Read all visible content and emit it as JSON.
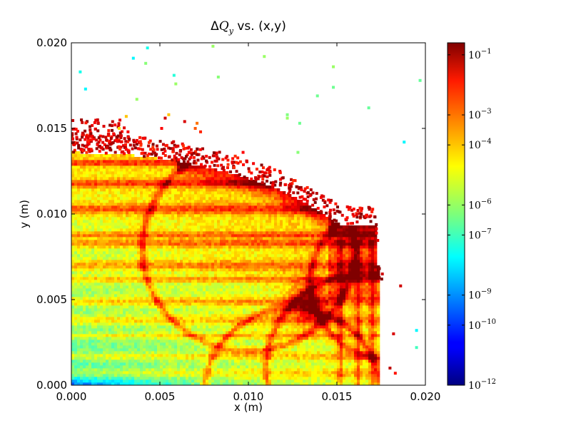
{
  "chart_data": {
    "type": "heatmap",
    "title": "ΔQ_y vs. (x,y)",
    "title_parts": {
      "prefix": "Δ",
      "symbol": "Q",
      "subscript": "y",
      "suffix": " vs. (x,y)"
    },
    "xlabel": "x (m)",
    "ylabel": "y (m)",
    "xlim": [
      0.0,
      0.02
    ],
    "ylim": [
      0.0,
      0.02
    ],
    "xticks": [
      0.0,
      0.005,
      0.01,
      0.015,
      0.02
    ],
    "yticks": [
      0.0,
      0.005,
      0.01,
      0.015,
      0.02
    ],
    "xtick_labels": [
      "0.000",
      "0.005",
      "0.010",
      "0.015",
      "0.020"
    ],
    "ytick_labels": [
      "0.000",
      "0.005",
      "0.010",
      "0.015",
      "0.020"
    ],
    "colormap": "jet",
    "colorbar": {
      "scale": "log",
      "range_exponent": [
        -12,
        -0.6
      ],
      "tick_exponents": [
        -12,
        -10,
        -9,
        -7,
        -6,
        -4,
        -3,
        -1
      ],
      "tick_labels": [
        {
          "base": "10",
          "exp": "−12"
        },
        {
          "base": "10",
          "exp": "−10"
        },
        {
          "base": "10",
          "exp": "−9"
        },
        {
          "base": "10",
          "exp": "−7"
        },
        {
          "base": "10",
          "exp": "−6"
        },
        {
          "base": "10",
          "exp": "−4"
        },
        {
          "base": "10",
          "exp": "−3"
        },
        {
          "base": "10",
          "exp": "−1"
        }
      ]
    },
    "region": {
      "core_boundary": [
        [
          0.0,
          0.0136
        ],
        [
          0.003,
          0.0135
        ],
        [
          0.006,
          0.0131
        ],
        [
          0.009,
          0.0124
        ],
        [
          0.0115,
          0.0116
        ],
        [
          0.0135,
          0.0105
        ],
        [
          0.0152,
          0.0094
        ],
        [
          0.0172,
          0.0094
        ],
        [
          0.0174,
          0.006
        ],
        [
          0.0174,
          0.0
        ]
      ],
      "sparse_points": [
        {
          "x": 0.0005,
          "y": 0.0183,
          "v": -7.5
        },
        {
          "x": 0.0008,
          "y": 0.0173,
          "v": -7.8
        },
        {
          "x": 0.0035,
          "y": 0.0191,
          "v": -7.8
        },
        {
          "x": 0.0043,
          "y": 0.0197,
          "v": -7.5
        },
        {
          "x": 0.0042,
          "y": 0.0188,
          "v": -6.2
        },
        {
          "x": 0.0037,
          "y": 0.0167,
          "v": -6.0
        },
        {
          "x": 0.0058,
          "y": 0.0181,
          "v": -7.3
        },
        {
          "x": 0.0059,
          "y": 0.0176,
          "v": -6.0
        },
        {
          "x": 0.008,
          "y": 0.0198,
          "v": -6.0
        },
        {
          "x": 0.0083,
          "y": 0.018,
          "v": -6.2
        },
        {
          "x": 0.0109,
          "y": 0.0192,
          "v": -6.0
        },
        {
          "x": 0.0122,
          "y": 0.0158,
          "v": -6.3
        },
        {
          "x": 0.0122,
          "y": 0.0156,
          "v": -6.0
        },
        {
          "x": 0.0129,
          "y": 0.0153,
          "v": -6.5
        },
        {
          "x": 0.0128,
          "y": 0.0136,
          "v": -6.2
        },
        {
          "x": 0.0139,
          "y": 0.0169,
          "v": -6.5
        },
        {
          "x": 0.0148,
          "y": 0.0174,
          "v": -6.5
        },
        {
          "x": 0.0148,
          "y": 0.0186,
          "v": -6.0
        },
        {
          "x": 0.0168,
          "y": 0.0162,
          "v": -6.6
        },
        {
          "x": 0.0188,
          "y": 0.0142,
          "v": -7.8
        },
        {
          "x": 0.0197,
          "y": 0.0178,
          "v": -6.6
        },
        {
          "x": 0.0195,
          "y": 0.0032,
          "v": -7.8
        },
        {
          "x": 0.0195,
          "y": 0.0022,
          "v": -7.0
        },
        {
          "x": 0.0186,
          "y": 0.0058,
          "v": -1.5
        },
        {
          "x": 0.0182,
          "y": 0.003,
          "v": -1.6
        },
        {
          "x": 0.018,
          "y": 0.001,
          "v": -1.3
        },
        {
          "x": 0.0183,
          "y": 0.0007,
          "v": -2.2
        },
        {
          "x": 0.0055,
          "y": 0.0158,
          "v": -4.2
        },
        {
          "x": 0.0051,
          "y": 0.015,
          "v": -2.0
        },
        {
          "x": 0.007,
          "y": 0.015,
          "v": -3.0
        },
        {
          "x": 0.0053,
          "y": 0.0156,
          "v": -1.5
        },
        {
          "x": 0.0064,
          "y": 0.0154,
          "v": -1.6
        },
        {
          "x": 0.0071,
          "y": 0.0153,
          "v": -3.3
        },
        {
          "x": 0.0073,
          "y": 0.0148,
          "v": -2.4
        },
        {
          "x": 0.0031,
          "y": 0.0157,
          "v": -4.2
        },
        {
          "x": 0.0027,
          "y": 0.015,
          "v": -4.5
        },
        {
          "x": 0.0032,
          "y": 0.0148,
          "v": -2.0
        },
        {
          "x": 0.0097,
          "y": 0.0136,
          "v": -2.0
        },
        {
          "x": 0.0099,
          "y": 0.0131,
          "v": -1.6
        }
      ]
    }
  }
}
